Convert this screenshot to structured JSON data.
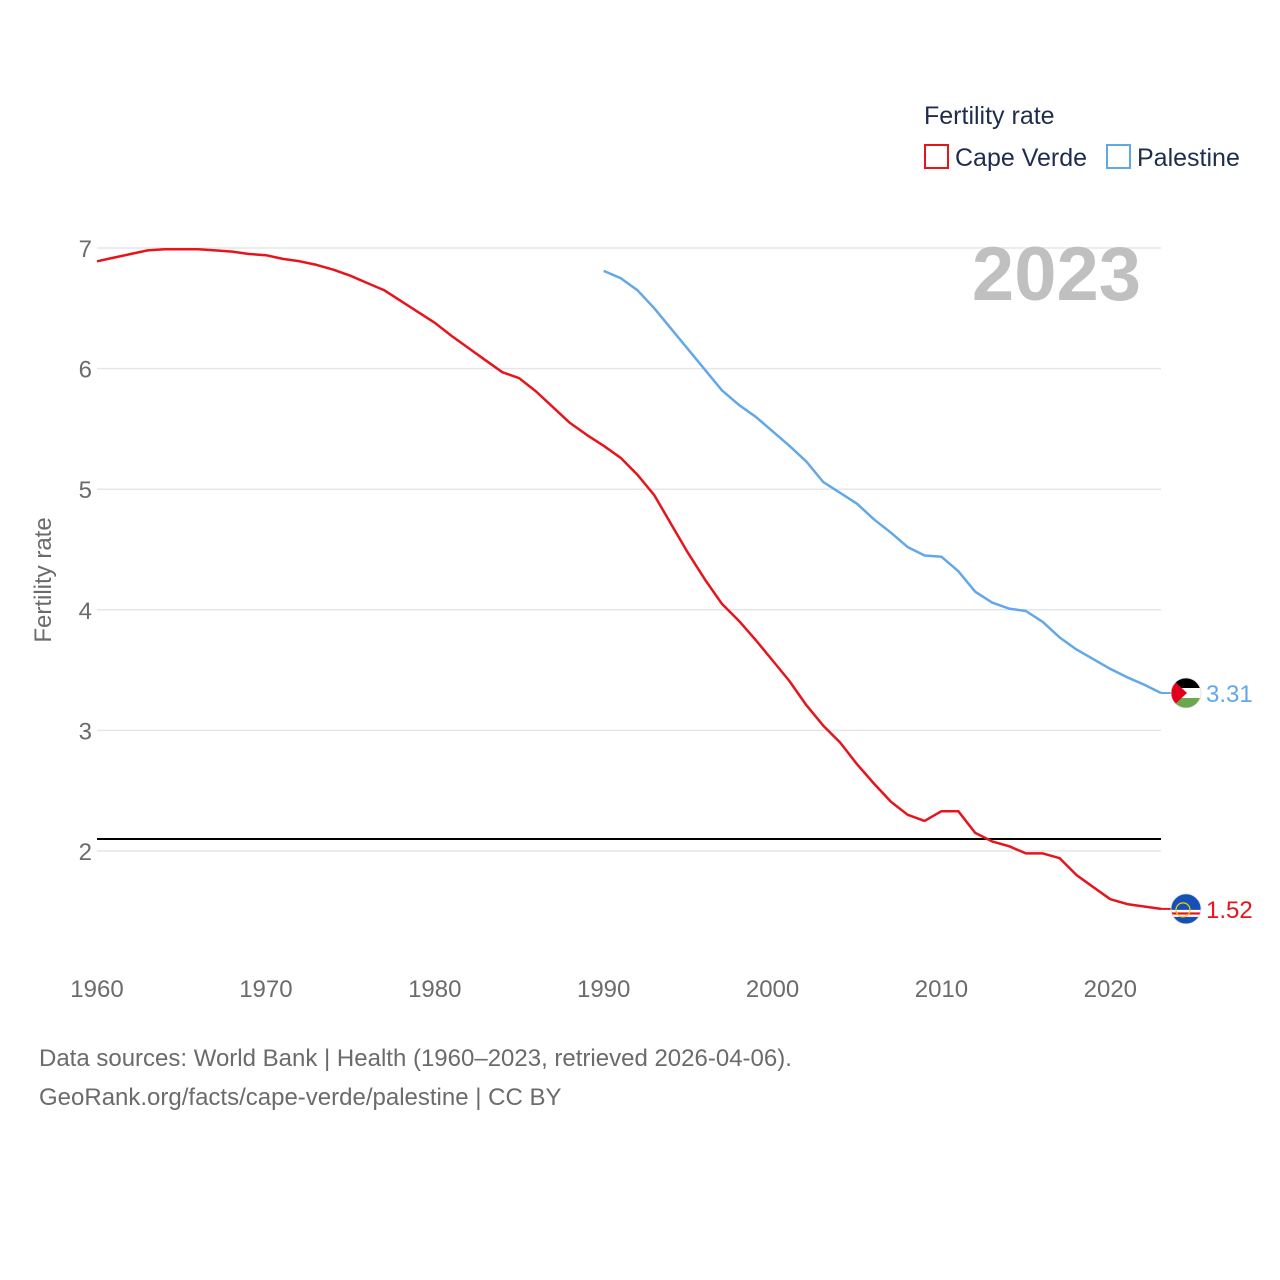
{
  "chart_data": {
    "type": "line",
    "title": "Fertility rate",
    "highlight_year": "2023",
    "xlabel": "",
    "ylabel": "Fertility rate",
    "xlim": [
      1960,
      2023
    ],
    "ylim": [
      1,
      7.2
    ],
    "xticks": [
      1960,
      1970,
      1980,
      1990,
      2000,
      2010,
      2020
    ],
    "yticks": [
      2,
      3,
      4,
      5,
      6,
      7
    ],
    "reference_line": 2.1,
    "legend_position": "top-right",
    "series": [
      {
        "name": "Cape Verde",
        "color": "#e8141c",
        "end_label": "1.52",
        "flag": "cape-verde-flag-icon",
        "x": [
          1960,
          1961,
          1962,
          1963,
          1964,
          1965,
          1966,
          1967,
          1968,
          1969,
          1970,
          1971,
          1972,
          1973,
          1974,
          1975,
          1976,
          1977,
          1978,
          1979,
          1980,
          1981,
          1982,
          1983,
          1984,
          1985,
          1986,
          1987,
          1988,
          1989,
          1990,
          1991,
          1992,
          1993,
          1994,
          1995,
          1996,
          1997,
          1998,
          1999,
          2000,
          2001,
          2002,
          2003,
          2004,
          2005,
          2006,
          2007,
          2008,
          2009,
          2010,
          2011,
          2012,
          2013,
          2014,
          2015,
          2016,
          2017,
          2018,
          2019,
          2020,
          2021,
          2022,
          2023
        ],
        "values": [
          6.89,
          6.92,
          6.95,
          6.98,
          6.99,
          6.99,
          6.99,
          6.98,
          6.97,
          6.95,
          6.94,
          6.91,
          6.89,
          6.86,
          6.82,
          6.77,
          6.71,
          6.65,
          6.56,
          6.47,
          6.38,
          6.27,
          6.17,
          6.07,
          5.97,
          5.92,
          5.81,
          5.68,
          5.55,
          5.45,
          5.36,
          5.26,
          5.12,
          4.95,
          4.71,
          4.47,
          4.25,
          4.05,
          3.91,
          3.75,
          3.58,
          3.41,
          3.21,
          3.04,
          2.9,
          2.72,
          2.56,
          2.41,
          2.3,
          2.25,
          2.33,
          2.33,
          2.15,
          2.08,
          2.04,
          1.98,
          1.98,
          1.94,
          1.8,
          1.7,
          1.6,
          1.56,
          1.54,
          1.52
        ]
      },
      {
        "name": "Palestine",
        "color": "#62a8e8",
        "end_label": "3.31",
        "flag": "palestine-flag-icon",
        "x": [
          1990,
          1991,
          1992,
          1993,
          1994,
          1995,
          1996,
          1997,
          1998,
          1999,
          2000,
          2001,
          2002,
          2003,
          2004,
          2005,
          2006,
          2007,
          2008,
          2009,
          2010,
          2011,
          2012,
          2013,
          2014,
          2015,
          2016,
          2017,
          2018,
          2019,
          2020,
          2021,
          2022,
          2023
        ],
        "values": [
          6.81,
          6.75,
          6.65,
          6.5,
          6.33,
          6.16,
          5.99,
          5.82,
          5.7,
          5.6,
          5.48,
          5.36,
          5.23,
          5.06,
          4.97,
          4.88,
          4.75,
          4.64,
          4.52,
          4.45,
          4.44,
          4.32,
          4.15,
          4.06,
          4.01,
          3.99,
          3.9,
          3.77,
          3.67,
          3.59,
          3.51,
          3.44,
          3.38,
          3.31
        ]
      }
    ]
  },
  "footer": {
    "line1": "Data sources: World Bank | Health (1960–2023, retrieved 2026-04-06).",
    "line2": "GeoRank.org/facts/cape-verde/palestine | CC BY"
  }
}
